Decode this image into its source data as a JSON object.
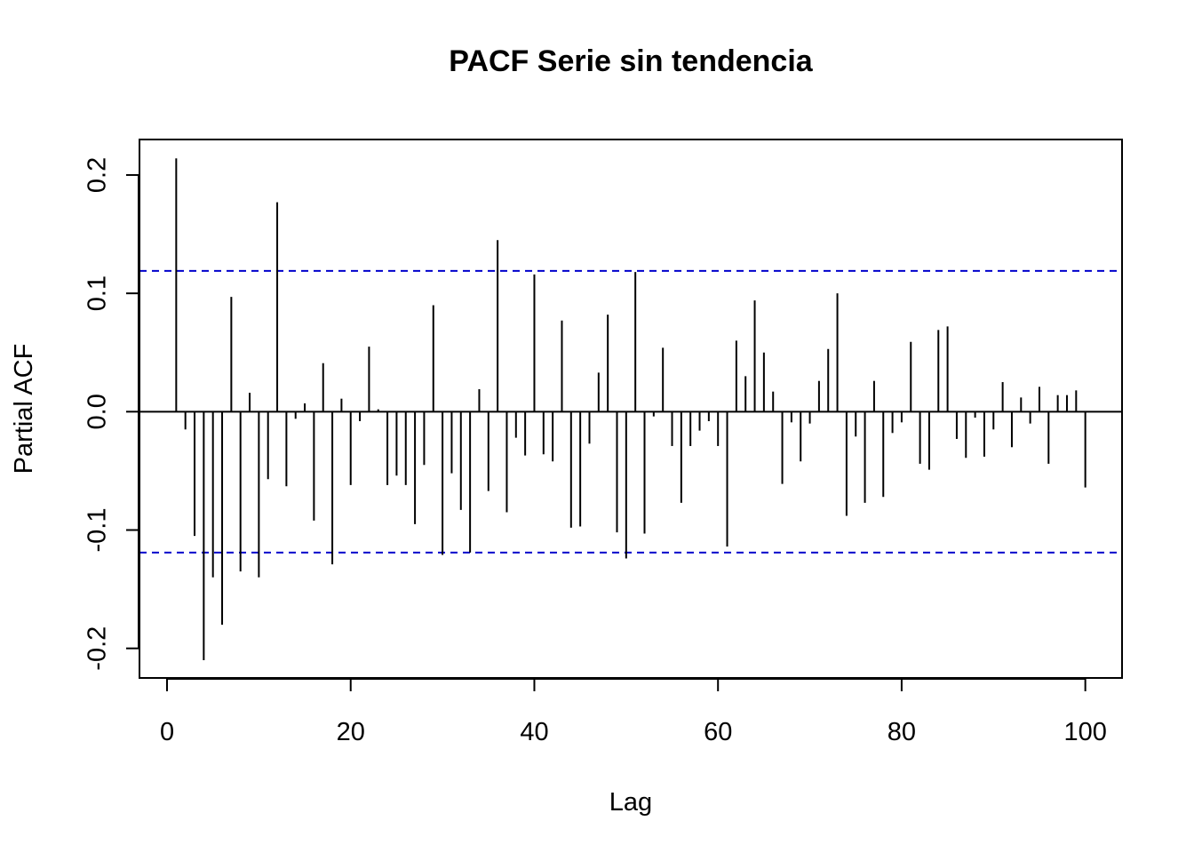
{
  "chart_data": {
    "type": "bar",
    "title": "PACF Serie sin tendencia",
    "xlabel": "Lag",
    "ylabel": "Partial ACF",
    "xlim": [
      -3,
      104
    ],
    "ylim": [
      -0.225,
      0.23
    ],
    "x_ticks": [
      0,
      20,
      40,
      60,
      80,
      100
    ],
    "x_tick_labels": [
      "0",
      "20",
      "40",
      "60",
      "80",
      "100"
    ],
    "y_ticks": [
      -0.2,
      -0.1,
      0.0,
      0.1,
      0.2
    ],
    "y_tick_labels": [
      "-0.2",
      "-0.1",
      "0.0",
      "0.1",
      "0.2"
    ],
    "confidence_limit": 0.119,
    "colors": {
      "bars": "#000000",
      "confidence": "#0000cc",
      "zero_line": "#000000"
    },
    "lags": [
      1,
      2,
      3,
      4,
      5,
      6,
      7,
      8,
      9,
      10,
      11,
      12,
      13,
      14,
      15,
      16,
      17,
      18,
      19,
      20,
      21,
      22,
      23,
      24,
      25,
      26,
      27,
      28,
      29,
      30,
      31,
      32,
      33,
      34,
      35,
      36,
      37,
      38,
      39,
      40,
      41,
      42,
      43,
      44,
      45,
      46,
      47,
      48,
      49,
      50,
      51,
      52,
      53,
      54,
      55,
      56,
      57,
      58,
      59,
      60,
      61,
      62,
      63,
      64,
      65,
      66,
      67,
      68,
      69,
      70,
      71,
      72,
      73,
      74,
      75,
      76,
      77,
      78,
      79,
      80,
      81,
      82,
      83,
      84,
      85,
      86,
      87,
      88,
      89,
      90,
      91,
      92,
      93,
      94,
      95,
      96,
      97,
      98,
      99,
      100
    ],
    "values": [
      0.214,
      -0.015,
      -0.105,
      -0.21,
      -0.14,
      -0.18,
      0.097,
      -0.135,
      0.016,
      -0.14,
      -0.057,
      0.177,
      -0.063,
      -0.006,
      0.007,
      -0.092,
      0.041,
      -0.129,
      0.011,
      -0.062,
      -0.008,
      0.055,
      0.002,
      -0.062,
      -0.054,
      -0.062,
      -0.095,
      -0.045,
      0.09,
      -0.121,
      -0.052,
      -0.083,
      -0.119,
      0.019,
      -0.067,
      0.145,
      -0.085,
      -0.022,
      -0.037,
      0.116,
      -0.036,
      -0.042,
      0.077,
      -0.098,
      -0.097,
      -0.027,
      0.033,
      0.082,
      -0.102,
      -0.124,
      0.118,
      -0.103,
      -0.004,
      0.054,
      -0.029,
      -0.077,
      -0.029,
      -0.016,
      -0.008,
      -0.029,
      -0.114,
      0.06,
      0.03,
      0.094,
      0.05,
      0.017,
      -0.061,
      -0.009,
      -0.042,
      -0.01,
      0.026,
      0.053,
      0.1,
      -0.088,
      -0.021,
      -0.077,
      0.026,
      -0.072,
      -0.018,
      -0.009,
      0.059,
      -0.044,
      -0.049,
      0.069,
      0.072,
      -0.023,
      -0.039,
      -0.005,
      -0.038,
      -0.015,
      0.025,
      -0.03,
      0.012,
      -0.01,
      0.021,
      -0.044,
      0.014,
      0.014,
      0.018,
      -0.064
    ]
  }
}
